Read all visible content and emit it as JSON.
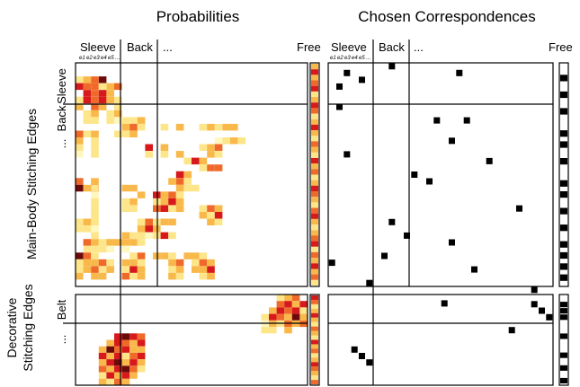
{
  "titles": {
    "left": "Probabilities",
    "right": "Chosen Correspondences"
  },
  "col_headers": {
    "sleeve": "Sleeve",
    "back": "Back",
    "ellipsis": "...",
    "free": "Free"
  },
  "row_headers": {
    "sleeve": "Sleeve",
    "back": "Back",
    "ellipsis": "...",
    "belt": "Belt",
    "ellipsis_lower": "..."
  },
  "side_labels": {
    "main": "Main-Body Stitching Edges",
    "decorative_line1": "Decorative",
    "decorative_line2": "Stitching Edges"
  },
  "sub_labels": [
    "e1",
    "e2",
    "e3",
    "e4",
    "e5"
  ],
  "sub_labels_tail": "...",
  "colors": {
    "very_low": "#fff7c0",
    "low": "#fde58a",
    "mid": "#f8b84a",
    "high": "#ef6a2a",
    "very_high": "#d7191c",
    "max": "#6b0a0a",
    "chosen": "#000000"
  },
  "grid": {
    "cols": 30,
    "rows_upper": 28,
    "rows_lower": 14
  },
  "probabilities_upper": [
    [
      2,
      3,
      "high"
    ],
    [
      3,
      2,
      "max"
    ],
    [
      4,
      3,
      "mid"
    ],
    [
      5,
      3,
      "high"
    ],
    [
      0,
      17,
      "high"
    ],
    [
      2,
      17,
      "mid"
    ],
    [
      0,
      18,
      "max"
    ],
    [
      1,
      18,
      "mid"
    ],
    [
      2,
      18,
      "very_high"
    ],
    [
      0,
      2,
      "low"
    ],
    [
      1,
      2,
      "mid"
    ],
    [
      2,
      2,
      "high"
    ],
    [
      0,
      3,
      "very_high"
    ],
    [
      1,
      3,
      "high"
    ],
    [
      3,
      3,
      "low"
    ],
    [
      1,
      4,
      "very_high"
    ],
    [
      2,
      4,
      "high"
    ],
    [
      3,
      4,
      "very_high"
    ],
    [
      4,
      4,
      "mid"
    ],
    [
      0,
      5,
      "low"
    ],
    [
      1,
      5,
      "very_high"
    ],
    [
      2,
      5,
      "high"
    ],
    [
      3,
      5,
      "very_high"
    ],
    [
      4,
      5,
      "mid"
    ],
    [
      5,
      5,
      "low"
    ],
    [
      0,
      6,
      "mid"
    ],
    [
      2,
      6,
      "high"
    ],
    [
      3,
      6,
      "mid"
    ],
    [
      5,
      6,
      "low"
    ],
    [
      1,
      7,
      "low"
    ],
    [
      2,
      7,
      "mid"
    ],
    [
      4,
      7,
      "low"
    ],
    [
      5,
      7,
      "mid"
    ],
    [
      1,
      8,
      "low"
    ],
    [
      2,
      8,
      "low"
    ],
    [
      4,
      8,
      "low"
    ],
    [
      5,
      8,
      "very_low"
    ],
    [
      6,
      8,
      "low"
    ],
    [
      7,
      8,
      "low"
    ],
    [
      8,
      8,
      "mid"
    ],
    [
      6,
      9,
      "mid"
    ],
    [
      7,
      9,
      "high"
    ],
    [
      8,
      9,
      "low"
    ],
    [
      6,
      10,
      "low"
    ],
    [
      7,
      10,
      "mid"
    ],
    [
      11,
      9,
      "low"
    ],
    [
      13,
      9,
      "mid"
    ],
    [
      16,
      9,
      "low"
    ],
    [
      17,
      9,
      "mid"
    ],
    [
      18,
      9,
      "low"
    ],
    [
      19,
      9,
      "mid"
    ],
    [
      20,
      9,
      "mid"
    ],
    [
      0,
      10,
      "high"
    ],
    [
      1,
      10,
      "low"
    ],
    [
      2,
      10,
      "mid"
    ],
    [
      5,
      10,
      "low"
    ],
    [
      0,
      11,
      "mid"
    ],
    [
      2,
      11,
      "low"
    ],
    [
      18,
      11,
      "very_low"
    ],
    [
      19,
      11,
      "low"
    ],
    [
      20,
      11,
      "mid"
    ],
    [
      21,
      11,
      "low"
    ],
    [
      0,
      12,
      "low"
    ],
    [
      2,
      12,
      "low"
    ],
    [
      0,
      13,
      "very_low"
    ],
    [
      2,
      13,
      "low"
    ],
    [
      9,
      12,
      "very_high"
    ],
    [
      11,
      12,
      "mid"
    ],
    [
      16,
      12,
      "low"
    ],
    [
      17,
      12,
      "mid"
    ],
    [
      18,
      12,
      "high"
    ],
    [
      9,
      13,
      "low"
    ],
    [
      11,
      13,
      "low"
    ],
    [
      13,
      13,
      "mid"
    ],
    [
      17,
      13,
      "mid"
    ],
    [
      18,
      13,
      "low"
    ],
    [
      14,
      14,
      "low"
    ],
    [
      15,
      14,
      "very_high"
    ],
    [
      16,
      14,
      "mid"
    ],
    [
      13,
      16,
      "very_high"
    ],
    [
      14,
      16,
      "mid"
    ],
    [
      16,
      15,
      "low"
    ],
    [
      17,
      15,
      "high"
    ],
    [
      18,
      15,
      "high"
    ],
    [
      13,
      17,
      "high"
    ],
    [
      14,
      17,
      "low"
    ],
    [
      12,
      17,
      "mid"
    ],
    [
      13,
      18,
      "mid"
    ],
    [
      14,
      18,
      "low"
    ],
    [
      15,
      18,
      "low"
    ],
    [
      2,
      18,
      "low"
    ],
    [
      6,
      18,
      "mid"
    ],
    [
      7,
      18,
      "mid"
    ],
    [
      8,
      19,
      "mid"
    ],
    [
      6,
      20,
      "low"
    ],
    [
      7,
      20,
      "mid"
    ],
    [
      6,
      21,
      "low"
    ],
    [
      7,
      21,
      "low"
    ],
    [
      2,
      19,
      "very_low"
    ],
    [
      2,
      20,
      "low"
    ],
    [
      2,
      21,
      "low"
    ],
    [
      2,
      22,
      "low"
    ],
    [
      2,
      23,
      "low"
    ],
    [
      2,
      24,
      "very_low"
    ],
    [
      2,
      25,
      "low"
    ],
    [
      10,
      19,
      "very_high"
    ],
    [
      11,
      19,
      "mid"
    ],
    [
      12,
      19,
      "high"
    ],
    [
      13,
      19,
      "low"
    ],
    [
      10,
      20,
      "low"
    ],
    [
      11,
      20,
      "mid"
    ],
    [
      12,
      20,
      "very_high"
    ],
    [
      13,
      20,
      "mid"
    ],
    [
      10,
      21,
      "high"
    ],
    [
      11,
      21,
      "very_high"
    ],
    [
      12,
      21,
      "low"
    ],
    [
      13,
      21,
      "mid"
    ],
    [
      16,
      21,
      "low"
    ],
    [
      17,
      21,
      "high"
    ],
    [
      18,
      21,
      "mid"
    ],
    [
      16,
      22,
      "mid"
    ],
    [
      17,
      22,
      "low"
    ],
    [
      18,
      22,
      "very_high"
    ],
    [
      17,
      23,
      "mid"
    ],
    [
      18,
      23,
      "low"
    ],
    [
      0,
      23,
      "low"
    ],
    [
      1,
      23,
      "mid"
    ],
    [
      0,
      24,
      "low"
    ],
    [
      1,
      24,
      "low"
    ],
    [
      8,
      23,
      "low"
    ],
    [
      9,
      23,
      "high"
    ],
    [
      10,
      23,
      "low"
    ],
    [
      11,
      23,
      "mid"
    ],
    [
      12,
      23,
      "mid"
    ],
    [
      8,
      24,
      "mid"
    ],
    [
      9,
      24,
      "very_high"
    ],
    [
      10,
      24,
      "mid"
    ],
    [
      8,
      25,
      "low"
    ],
    [
      9,
      25,
      "very_low"
    ],
    [
      10,
      25,
      "low"
    ],
    [
      11,
      25,
      "very_high"
    ],
    [
      12,
      25,
      "low"
    ],
    [
      6,
      25,
      "mid"
    ],
    [
      7,
      25,
      "low"
    ],
    [
      5,
      26,
      "mid"
    ],
    [
      6,
      26,
      "mid"
    ],
    [
      7,
      26,
      "mid"
    ],
    [
      8,
      26,
      "low"
    ],
    [
      6,
      27,
      "very_low"
    ],
    [
      1,
      26,
      "high"
    ],
    [
      2,
      26,
      "mid"
    ],
    [
      3,
      26,
      "low"
    ],
    [
      4,
      26,
      "mid"
    ],
    [
      1,
      27,
      "low"
    ],
    [
      2,
      27,
      "low"
    ],
    [
      3,
      27,
      "low"
    ],
    [
      4,
      27,
      "very_low"
    ],
    [
      0,
      28,
      "max"
    ],
    [
      1,
      28,
      "high"
    ],
    [
      2,
      28,
      "low"
    ],
    [
      7,
      28,
      "low"
    ],
    [
      8,
      28,
      "high"
    ],
    [
      10,
      28,
      "mid"
    ],
    [
      11,
      28,
      "mid"
    ],
    [
      12,
      28,
      "low"
    ],
    [
      14,
      28,
      "mid"
    ],
    [
      15,
      28,
      "mid"
    ],
    [
      16,
      28,
      "low"
    ],
    [
      0,
      29,
      "low"
    ],
    [
      1,
      29,
      "mid"
    ],
    [
      2,
      29,
      "mid"
    ],
    [
      3,
      29,
      "high"
    ],
    [
      4,
      29,
      "low"
    ],
    [
      6,
      29,
      "mid"
    ],
    [
      7,
      29,
      "mid"
    ],
    [
      8,
      29,
      "low"
    ],
    [
      12,
      29,
      "mid"
    ],
    [
      13,
      29,
      "high"
    ],
    [
      15,
      29,
      "low"
    ],
    [
      16,
      29,
      "high"
    ],
    [
      17,
      29,
      "mid"
    ],
    [
      0,
      30,
      "low"
    ],
    [
      1,
      30,
      "mid"
    ],
    [
      2,
      30,
      "high"
    ],
    [
      3,
      30,
      "low"
    ],
    [
      4,
      30,
      "mid"
    ],
    [
      6,
      30,
      "low"
    ],
    [
      7,
      30,
      "very_high"
    ],
    [
      8,
      30,
      "mid"
    ],
    [
      12,
      30,
      "low"
    ],
    [
      13,
      30,
      "mid"
    ],
    [
      15,
      30,
      "mid"
    ],
    [
      16,
      30,
      "mid"
    ],
    [
      17,
      30,
      "very_high"
    ],
    [
      0,
      31,
      "mid"
    ],
    [
      2,
      31,
      "mid"
    ],
    [
      3,
      31,
      "mid"
    ],
    [
      6,
      31,
      "high"
    ],
    [
      7,
      31,
      "low"
    ],
    [
      8,
      31,
      "mid"
    ],
    [
      12,
      31,
      "mid"
    ],
    [
      13,
      31,
      "low"
    ],
    [
      16,
      31,
      "low"
    ],
    [
      17,
      31,
      "mid"
    ]
  ],
  "probabilities_lower": [
    [
      26,
      0,
      "low"
    ],
    [
      27,
      0,
      "mid"
    ],
    [
      28,
      0,
      "high"
    ],
    [
      26,
      1,
      "high"
    ],
    [
      27,
      1,
      "very_high"
    ],
    [
      28,
      1,
      "mid"
    ],
    [
      29,
      1,
      "very_high"
    ],
    [
      25,
      2,
      "mid"
    ],
    [
      26,
      2,
      "very_high"
    ],
    [
      27,
      2,
      "high"
    ],
    [
      28,
      2,
      "very_high"
    ],
    [
      29,
      2,
      "low"
    ],
    [
      24,
      3,
      "low"
    ],
    [
      25,
      3,
      "very_high"
    ],
    [
      26,
      3,
      "high"
    ],
    [
      27,
      3,
      "mid"
    ],
    [
      28,
      3,
      "max"
    ],
    [
      29,
      3,
      "mid"
    ],
    [
      24,
      4,
      "very_low"
    ],
    [
      25,
      4,
      "mid"
    ],
    [
      26,
      4,
      "low"
    ],
    [
      27,
      4,
      "high"
    ],
    [
      28,
      4,
      "mid"
    ],
    [
      29,
      4,
      "high"
    ],
    [
      24,
      5,
      "low"
    ],
    [
      25,
      5,
      "low"
    ],
    [
      27,
      5,
      "mid"
    ],
    [
      5,
      6,
      "very_high"
    ],
    [
      6,
      6,
      "max"
    ],
    [
      7,
      6,
      "very_high"
    ],
    [
      8,
      6,
      "high"
    ],
    [
      4,
      7,
      "mid"
    ],
    [
      5,
      7,
      "very_high"
    ],
    [
      6,
      7,
      "high"
    ],
    [
      7,
      7,
      "mid"
    ],
    [
      8,
      7,
      "very_high"
    ],
    [
      3,
      8,
      "mid"
    ],
    [
      4,
      8,
      "max"
    ],
    [
      5,
      8,
      "high"
    ],
    [
      6,
      8,
      "very_high"
    ],
    [
      7,
      8,
      "mid"
    ],
    [
      8,
      8,
      "mid"
    ],
    [
      3,
      9,
      "very_high"
    ],
    [
      4,
      9,
      "mid"
    ],
    [
      5,
      9,
      "very_high"
    ],
    [
      6,
      9,
      "low"
    ],
    [
      7,
      9,
      "high"
    ],
    [
      8,
      9,
      "very_high"
    ],
    [
      3,
      10,
      "mid"
    ],
    [
      4,
      10,
      "very_high"
    ],
    [
      5,
      10,
      "max"
    ],
    [
      6,
      10,
      "mid"
    ],
    [
      7,
      10,
      "very_high"
    ],
    [
      8,
      10,
      "mid"
    ],
    [
      3,
      11,
      "high"
    ],
    [
      4,
      11,
      "mid"
    ],
    [
      5,
      11,
      "very_high"
    ],
    [
      6,
      11,
      "max"
    ],
    [
      7,
      11,
      "high"
    ],
    [
      8,
      11,
      "low"
    ],
    [
      3,
      12,
      "low"
    ],
    [
      4,
      12,
      "very_high"
    ],
    [
      5,
      12,
      "mid"
    ],
    [
      6,
      12,
      "very_high"
    ],
    [
      7,
      12,
      "mid"
    ],
    [
      3,
      13,
      "mid"
    ],
    [
      4,
      13,
      "low"
    ],
    [
      5,
      13,
      "high"
    ],
    [
      6,
      13,
      "mid"
    ]
  ],
  "free_probabilities": [
    "mid",
    "very_high",
    "mid",
    "high",
    "very_high",
    "low",
    "mid",
    "very_high",
    "high",
    "low",
    "mid",
    "very_high",
    "mid",
    "low",
    "high",
    "mid",
    "low",
    "very_high",
    "mid",
    "high",
    "low",
    "mid",
    "very_high",
    "high",
    "mid",
    "low",
    "high",
    "very_high",
    "mid",
    "low",
    "mid",
    "high",
    "very_high",
    "low",
    "high",
    "mid",
    "very_high",
    "mid",
    "high",
    "low",
    "mid",
    "very_high",
    "high",
    "mid",
    "low",
    "high",
    "mid",
    "very_high",
    "mid",
    "low",
    "high",
    "very_high",
    "mid",
    "high",
    "low",
    "mid",
    "very_high",
    "low",
    "mid",
    "high"
  ],
  "chosen_upper": [
    [
      2,
      1
    ],
    [
      4,
      2
    ],
    [
      1,
      3
    ],
    [
      17,
      1
    ],
    [
      8,
      0
    ],
    [
      1,
      6
    ],
    [
      14,
      8
    ],
    [
      18,
      8
    ],
    [
      16,
      11
    ],
    [
      21,
      14
    ],
    [
      2,
      13
    ],
    [
      11,
      16
    ],
    [
      13,
      17
    ],
    [
      25,
      21
    ],
    [
      8,
      23
    ],
    [
      10,
      25
    ],
    [
      16,
      26
    ],
    [
      7,
      28
    ],
    [
      19,
      30
    ],
    [
      0,
      29
    ],
    [
      5,
      32
    ],
    [
      15,
      35
    ],
    [
      27,
      33
    ]
  ],
  "chosen_lower": [
    [
      27,
      1
    ],
    [
      28,
      2
    ],
    [
      29,
      3
    ],
    [
      24,
      5
    ],
    [
      3,
      8
    ],
    [
      4,
      9
    ],
    [
      5,
      10
    ]
  ],
  "free_chosen_upper": [
    2,
    5,
    8,
    12,
    14,
    17,
    21,
    23,
    26,
    29,
    32,
    34,
    36,
    38
  ],
  "free_chosen_lower": [
    1,
    2,
    3,
    6,
    9,
    11,
    13
  ]
}
